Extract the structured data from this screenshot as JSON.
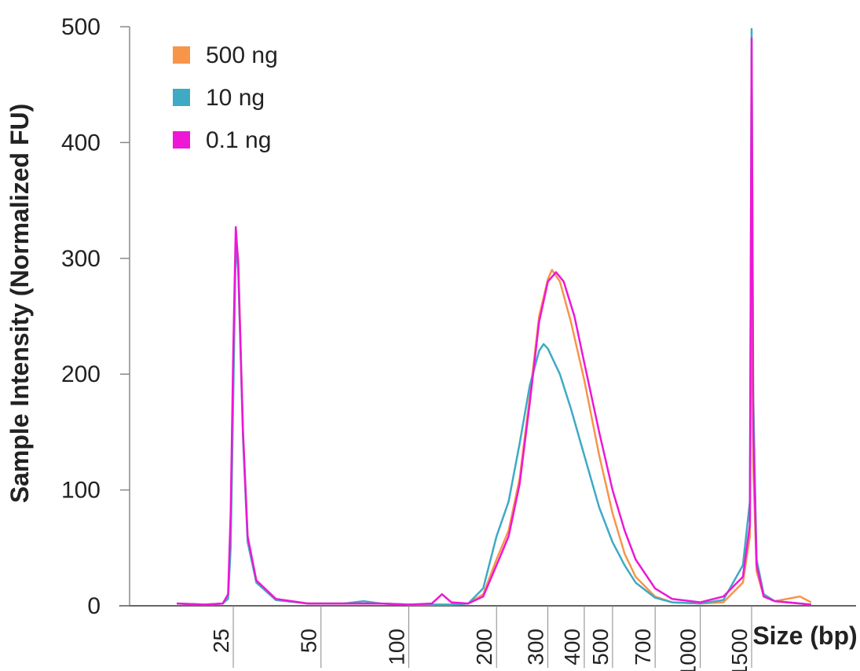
{
  "chart_data": {
    "type": "line",
    "title": "",
    "xlabel": "Size (bp)",
    "ylabel": "Sample Intensity (Normalized FU)",
    "ylim": [
      0,
      500
    ],
    "y_ticks": [
      "0",
      "100",
      "200",
      "300",
      "400",
      "500"
    ],
    "x_ticks": [
      "25",
      "50",
      "100",
      "200",
      "300",
      "400",
      "500",
      "700",
      "1000",
      "1500"
    ],
    "x_scale": "log",
    "legend": "top-left",
    "grid": false,
    "series": [
      {
        "name": "500 ng",
        "color": "#F7954A",
        "points": [
          [
            16,
            2
          ],
          [
            20,
            1
          ],
          [
            23,
            2
          ],
          [
            24,
            8
          ],
          [
            24.5,
            60
          ],
          [
            25,
            200
          ],
          [
            25.5,
            318
          ],
          [
            26,
            300
          ],
          [
            27,
            150
          ],
          [
            28,
            60
          ],
          [
            30,
            20
          ],
          [
            35,
            5
          ],
          [
            45,
            2
          ],
          [
            60,
            2
          ],
          [
            80,
            2
          ],
          [
            100,
            1
          ],
          [
            140,
            1
          ],
          [
            160,
            2
          ],
          [
            180,
            10
          ],
          [
            200,
            40
          ],
          [
            220,
            65
          ],
          [
            240,
            110
          ],
          [
            260,
            180
          ],
          [
            280,
            250
          ],
          [
            300,
            282
          ],
          [
            310,
            290
          ],
          [
            330,
            280
          ],
          [
            360,
            245
          ],
          [
            400,
            195
          ],
          [
            450,
            130
          ],
          [
            500,
            80
          ],
          [
            550,
            45
          ],
          [
            600,
            25
          ],
          [
            700,
            8
          ],
          [
            800,
            3
          ],
          [
            1000,
            2
          ],
          [
            1200,
            3
          ],
          [
            1400,
            20
          ],
          [
            1480,
            60
          ],
          [
            1500,
            320
          ],
          [
            1520,
            120
          ],
          [
            1560,
            30
          ],
          [
            1650,
            8
          ],
          [
            1800,
            4
          ],
          [
            2200,
            8
          ],
          [
            2400,
            3
          ]
        ]
      },
      {
        "name": "10 ng",
        "color": "#3EAAC4",
        "points": [
          [
            16,
            2
          ],
          [
            20,
            1
          ],
          [
            23,
            2
          ],
          [
            24,
            6
          ],
          [
            24.5,
            50
          ],
          [
            25,
            180
          ],
          [
            25.5,
            312
          ],
          [
            26,
            290
          ],
          [
            27,
            145
          ],
          [
            28,
            55
          ],
          [
            30,
            20
          ],
          [
            35,
            5
          ],
          [
            45,
            2
          ],
          [
            60,
            2
          ],
          [
            70,
            4
          ],
          [
            80,
            2
          ],
          [
            100,
            1
          ],
          [
            140,
            1
          ],
          [
            160,
            2
          ],
          [
            180,
            15
          ],
          [
            200,
            60
          ],
          [
            220,
            90
          ],
          [
            240,
            140
          ],
          [
            260,
            190
          ],
          [
            280,
            220
          ],
          [
            290,
            226
          ],
          [
            300,
            222
          ],
          [
            330,
            200
          ],
          [
            360,
            170
          ],
          [
            400,
            130
          ],
          [
            450,
            85
          ],
          [
            500,
            55
          ],
          [
            550,
            35
          ],
          [
            600,
            20
          ],
          [
            700,
            7
          ],
          [
            800,
            3
          ],
          [
            1000,
            2
          ],
          [
            1200,
            5
          ],
          [
            1400,
            35
          ],
          [
            1480,
            90
          ],
          [
            1500,
            498
          ],
          [
            1520,
            180
          ],
          [
            1560,
            40
          ],
          [
            1650,
            10
          ],
          [
            1800,
            4
          ],
          [
            2200,
            2
          ],
          [
            2400,
            1
          ]
        ]
      },
      {
        "name": "0.1 ng",
        "color": "#EE17D6",
        "points": [
          [
            16,
            2
          ],
          [
            20,
            1
          ],
          [
            23,
            2
          ],
          [
            24,
            10
          ],
          [
            24.5,
            80
          ],
          [
            25,
            220
          ],
          [
            25.5,
            327
          ],
          [
            26,
            295
          ],
          [
            27,
            150
          ],
          [
            28,
            60
          ],
          [
            30,
            22
          ],
          [
            35,
            6
          ],
          [
            45,
            2
          ],
          [
            60,
            2
          ],
          [
            80,
            2
          ],
          [
            100,
            1
          ],
          [
            120,
            2
          ],
          [
            130,
            10
          ],
          [
            140,
            3
          ],
          [
            160,
            2
          ],
          [
            180,
            8
          ],
          [
            200,
            35
          ],
          [
            220,
            60
          ],
          [
            240,
            105
          ],
          [
            260,
            175
          ],
          [
            280,
            245
          ],
          [
            300,
            280
          ],
          [
            320,
            288
          ],
          [
            340,
            280
          ],
          [
            370,
            250
          ],
          [
            400,
            210
          ],
          [
            450,
            150
          ],
          [
            500,
            100
          ],
          [
            550,
            65
          ],
          [
            600,
            40
          ],
          [
            700,
            15
          ],
          [
            800,
            6
          ],
          [
            1000,
            3
          ],
          [
            1200,
            8
          ],
          [
            1400,
            25
          ],
          [
            1480,
            70
          ],
          [
            1500,
            490
          ],
          [
            1520,
            150
          ],
          [
            1560,
            35
          ],
          [
            1650,
            8
          ],
          [
            1800,
            4
          ],
          [
            2200,
            2
          ],
          [
            2400,
            1
          ]
        ]
      }
    ]
  }
}
